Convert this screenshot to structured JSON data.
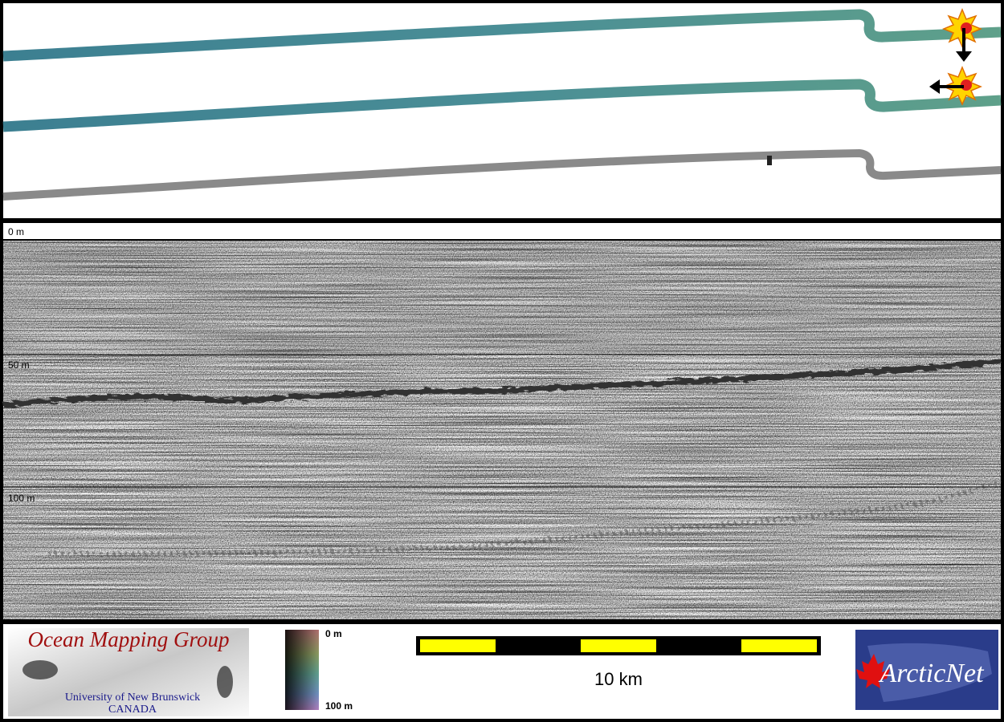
{
  "echogram": {
    "depth_labels": [
      "0 m",
      "50 m",
      "100 m"
    ]
  },
  "legend": {
    "logo_title": "Ocean Mapping Group",
    "logo_subtitle": "University of New Brunswick",
    "logo_country": "CANADA",
    "colorbar_labels": [
      "0 m",
      "100 m"
    ],
    "scale_label": "10 km",
    "partner_logo": "ArcticNet"
  }
}
